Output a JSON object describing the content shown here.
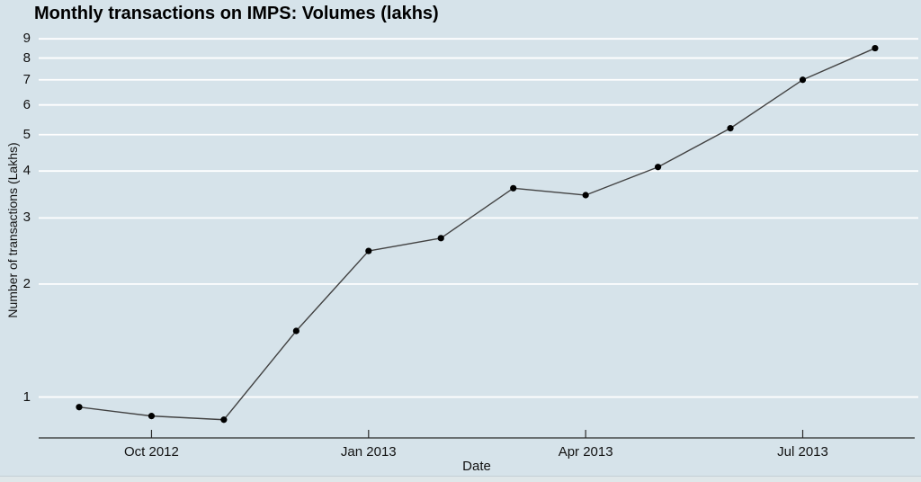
{
  "window": {
    "background": "#d6e3ea"
  },
  "chart": {
    "title": "Monthly transactions on IMPS: Volumes (lakhs)",
    "xlabel": "Date",
    "ylabel": "Number of transactions (Lakhs)"
  },
  "chart_data": {
    "type": "line",
    "title": "Monthly transactions on IMPS: Volumes (lakhs)",
    "xlabel": "Date",
    "ylabel": "Number of transactions (Lakhs)",
    "x": [
      "Sep 2012",
      "Oct 2012",
      "Nov 2012",
      "Dec 2012",
      "Jan 2013",
      "Feb 2013",
      "Mar 2013",
      "Apr 2013",
      "May 2013",
      "Jun 2013",
      "Jul 2013",
      "Aug 2013"
    ],
    "values": [
      0.94,
      0.89,
      0.87,
      1.5,
      2.45,
      2.65,
      3.6,
      3.45,
      4.1,
      5.2,
      7.0,
      8.5
    ],
    "y_scale": "log10",
    "y_ticks": [
      1,
      2,
      3,
      4,
      5,
      6,
      7,
      8,
      9
    ],
    "x_tick_labels": [
      "Oct 2012",
      "Jan 2013",
      "Apr 2013",
      "Jul 2013"
    ],
    "x_tick_indices": [
      1,
      4,
      7,
      10
    ],
    "ylim": [
      0.78,
      9.4
    ],
    "grid": "horizontal",
    "legend": "none",
    "marker": "filled-circle",
    "colors": {
      "background": "#d6e3ea",
      "gridline": "#ffffff",
      "line": "#424242",
      "marker": "#000000",
      "axis": "#2b2b2b",
      "text": "#000000"
    }
  }
}
